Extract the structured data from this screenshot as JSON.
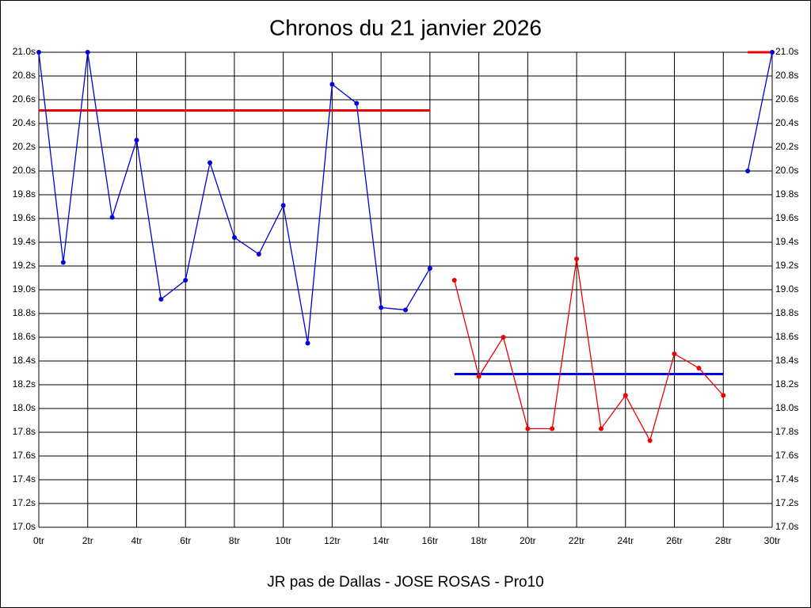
{
  "chart_data": {
    "type": "line",
    "title": "Chronos du 21 janvier 2026",
    "footer": "JR pas de Dallas - JOSE ROSAS - Pro10",
    "x": [
      0,
      1,
      2,
      3,
      4,
      5,
      6,
      7,
      8,
      9,
      10,
      11,
      12,
      13,
      14,
      15,
      16,
      17,
      18,
      19,
      20,
      21,
      22,
      23,
      24,
      25,
      26,
      27,
      28,
      29,
      30
    ],
    "series": [
      {
        "color": "#0000dd",
        "values": [
          21.0,
          19.23,
          21.0,
          19.61,
          20.26,
          18.92,
          19.08,
          20.07,
          19.44,
          19.3,
          19.71,
          18.55,
          20.73,
          20.57,
          18.85,
          18.83,
          19.18,
          null,
          null,
          null,
          null,
          null,
          null,
          null,
          null,
          null,
          null,
          null,
          null,
          20.0,
          21.0
        ]
      },
      {
        "color": "#ee0000",
        "values": [
          null,
          null,
          null,
          null,
          null,
          null,
          null,
          null,
          null,
          null,
          null,
          null,
          null,
          null,
          null,
          null,
          null,
          19.08,
          18.27,
          18.6,
          17.83,
          17.83,
          19.26,
          17.83,
          18.11,
          17.73,
          18.46,
          18.34,
          18.11,
          null,
          null
        ]
      }
    ],
    "reference_lines": [
      {
        "color": "#ee0000",
        "value": 20.51,
        "x": [
          0,
          16
        ]
      },
      {
        "color": "#0000dd",
        "value": 18.29,
        "x": [
          17,
          28
        ]
      },
      {
        "color": "#ee0000",
        "value": 21.0,
        "x": [
          29,
          30
        ]
      }
    ],
    "xlim": [
      0,
      30
    ],
    "xticks": [
      {
        "value": 0,
        "label": "0tr"
      },
      {
        "value": 2,
        "label": "2tr"
      },
      {
        "value": 4,
        "label": "4tr"
      },
      {
        "value": 6,
        "label": "6tr"
      },
      {
        "value": 8,
        "label": "8tr"
      },
      {
        "value": 10,
        "label": "10tr"
      },
      {
        "value": 12,
        "label": "12tr"
      },
      {
        "value": 14,
        "label": "14tr"
      },
      {
        "value": 16,
        "label": "16tr"
      },
      {
        "value": 18,
        "label": "18tr"
      },
      {
        "value": 20,
        "label": "20tr"
      },
      {
        "value": 22,
        "label": "22tr"
      },
      {
        "value": 24,
        "label": "24tr"
      },
      {
        "value": 26,
        "label": "26tr"
      },
      {
        "value": 28,
        "label": "28tr"
      },
      {
        "value": 30,
        "label": "30tr"
      }
    ],
    "ylim": [
      17.0,
      21.0
    ],
    "yticks": [
      {
        "value": 17.0,
        "label": "17.0s"
      },
      {
        "value": 17.2,
        "label": "17.2s"
      },
      {
        "value": 17.4,
        "label": "17.4s"
      },
      {
        "value": 17.6,
        "label": "17.6s"
      },
      {
        "value": 17.8,
        "label": "17.8s"
      },
      {
        "value": 18.0,
        "label": "18.0s"
      },
      {
        "value": 18.2,
        "label": "18.2s"
      },
      {
        "value": 18.4,
        "label": "18.4s"
      },
      {
        "value": 18.6,
        "label": "18.6s"
      },
      {
        "value": 18.8,
        "label": "18.8s"
      },
      {
        "value": 19.0,
        "label": "19.0s"
      },
      {
        "value": 19.2,
        "label": "19.2s"
      },
      {
        "value": 19.4,
        "label": "19.4s"
      },
      {
        "value": 19.6,
        "label": "19.6s"
      },
      {
        "value": 19.8,
        "label": "19.8s"
      },
      {
        "value": 20.0,
        "label": "20.0s"
      },
      {
        "value": 20.2,
        "label": "20.2s"
      },
      {
        "value": 20.4,
        "label": "20.4s"
      },
      {
        "value": 20.6,
        "label": "20.6s"
      },
      {
        "value": 20.8,
        "label": "20.8s"
      },
      {
        "value": 21.0,
        "label": "21.0s"
      }
    ],
    "grid": true
  }
}
